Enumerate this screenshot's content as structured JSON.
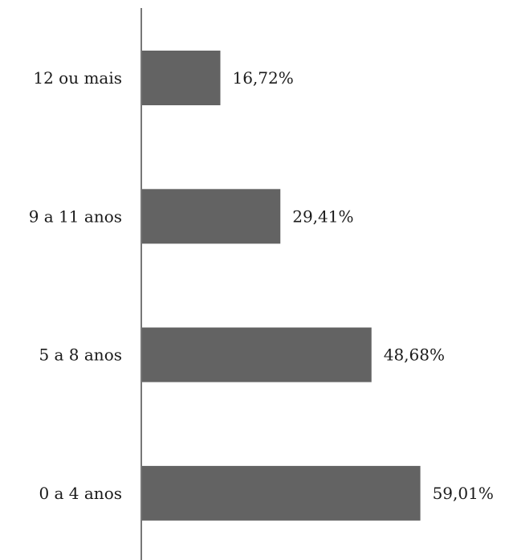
{
  "chart_data": {
    "type": "bar",
    "orientation": "horizontal",
    "title": "",
    "xlabel": "",
    "ylabel": "",
    "categories": [
      "12 ou mais",
      "9 a 11 anos",
      "5 a 8 anos",
      "0 a 4 anos"
    ],
    "values": [
      16.72,
      29.41,
      48.68,
      59.01
    ],
    "value_labels": [
      "16,72%",
      "29,41%",
      "48,68%",
      "59,01%"
    ],
    "xlim": [
      0,
      65
    ],
    "grid": false,
    "legend": "none",
    "colors": {
      "bar": "#636363",
      "axis": "#777777",
      "text": "#1a1a1a"
    }
  }
}
